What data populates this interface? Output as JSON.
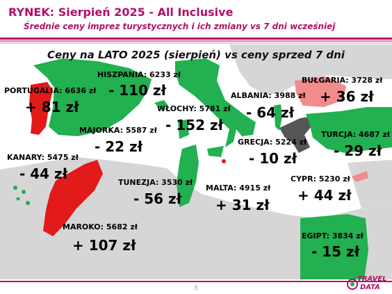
{
  "header": {
    "title": "RYNEK: Sierpień 2025 - All Inclusive",
    "subtitle": "Średnie ceny imprez turystycznych i ich zmiany vs 7 dni wcześniej"
  },
  "map_heading": "Ceny na LATO 2025 (sierpień) vs ceny sprzed 7 dni",
  "colors": {
    "brand": "#b0106a",
    "decrease": "#22b050",
    "increase_strong": "#e21a1a",
    "increase_light": "#f28c8c",
    "neutral_dark": "#555555",
    "land": "#d6d6d6",
    "sea": "#ffffff"
  },
  "destinations": {
    "portugalia": {
      "label": "PORTUGALIA: 6636 zł",
      "change": "+ 81 zł"
    },
    "hiszpania": {
      "label": "HISZPANIA: 6233 zł",
      "change": "- 110 zł"
    },
    "wlochy": {
      "label": "WŁOCHY: 5781 zł",
      "change": "- 152 zł"
    },
    "majorka": {
      "label": "MAJORKA: 5587 zł",
      "change": "- 22 zł"
    },
    "albania": {
      "label": "ALBANIA: 3988 zł",
      "change": "- 64 zł"
    },
    "bulgaria": {
      "label": "BUŁGARIA: 3728 zł",
      "change": "+ 36 zł"
    },
    "turcja": {
      "label": "TURCJA: 4687 zł",
      "change": "- 29 zł"
    },
    "grecja": {
      "label": "GRECJA: 5224 zł",
      "change": "- 10 zł"
    },
    "kanary": {
      "label": "KANARY: 5475 zł",
      "change": "- 44 zł"
    },
    "tunezja": {
      "label": "TUNEZJA: 3530 zł",
      "change": "- 56 zł"
    },
    "malta": {
      "label": "MALTA: 4915 zł",
      "change": "+ 31 zł"
    },
    "cypr": {
      "label": "CYPR: 5230 zł",
      "change": "+ 44 zł"
    },
    "maroko": {
      "label": "MAROKO: 5682 zł",
      "change": "+ 107 zł"
    },
    "egipt": {
      "label": "EGIPT: 3834 zł",
      "change": "- 15 zł"
    }
  },
  "footer": {
    "page_number": "5",
    "logo_line1": "TRAVEL",
    "logo_line2": "DATA"
  }
}
